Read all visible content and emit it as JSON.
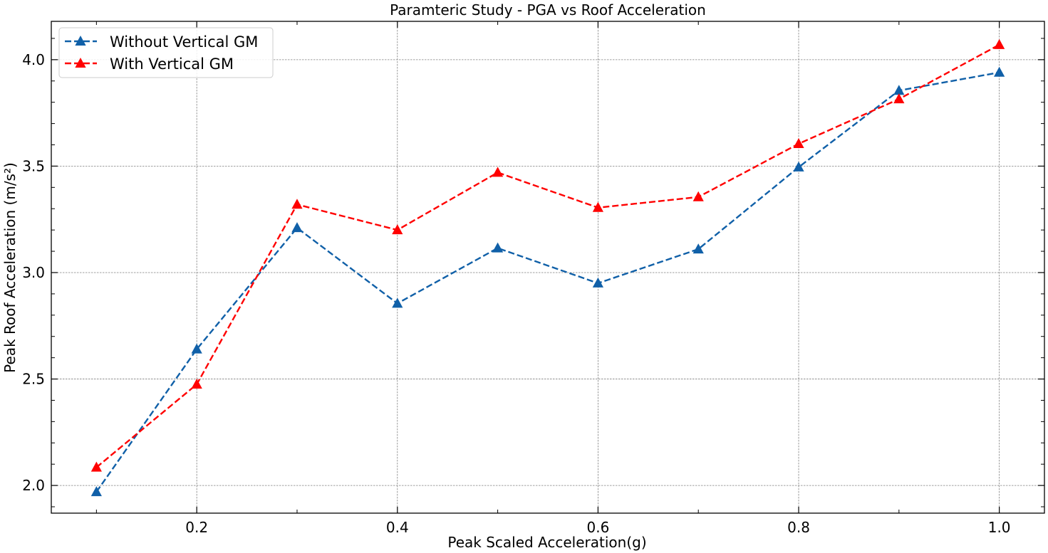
{
  "chart_data": {
    "type": "line",
    "title": "Paramteric Study - PGA vs Roof Acceleration",
    "xlabel": "Peak Scaled Acceleration(g)",
    "ylabel": "Peak Roof Acceleration (m/s²)",
    "xlim": [
      0.055,
      1.045
    ],
    "ylim": [
      1.87,
      4.18
    ],
    "xticks": [
      0.2,
      0.4,
      0.6,
      0.8,
      1.0
    ],
    "xtick_labels": [
      "0.2",
      "0.4",
      "0.6",
      "0.8",
      "1.0"
    ],
    "yticks": [
      2.0,
      2.5,
      3.0,
      3.5,
      4.0
    ],
    "ytick_labels": [
      "2.0",
      "2.5",
      "3.0",
      "3.5",
      "4.0"
    ],
    "grid": true,
    "legend_position": "top-left",
    "x": [
      0.1,
      0.2,
      0.3,
      0.4,
      0.5,
      0.6,
      0.7,
      0.8,
      0.9,
      1.0
    ],
    "series": [
      {
        "name": "Without Vertical GM",
        "color": "#1060a8",
        "marker": "triangle",
        "line_style": "dashed",
        "values": [
          1.97,
          2.64,
          3.21,
          2.855,
          3.115,
          2.95,
          3.11,
          3.495,
          3.855,
          3.94
        ]
      },
      {
        "name": "With Vertical GM",
        "color": "#ff0000",
        "marker": "triangle",
        "line_style": "dashed",
        "values": [
          2.085,
          2.475,
          3.32,
          3.2,
          3.47,
          3.305,
          3.355,
          3.605,
          3.815,
          4.07
        ]
      }
    ]
  }
}
